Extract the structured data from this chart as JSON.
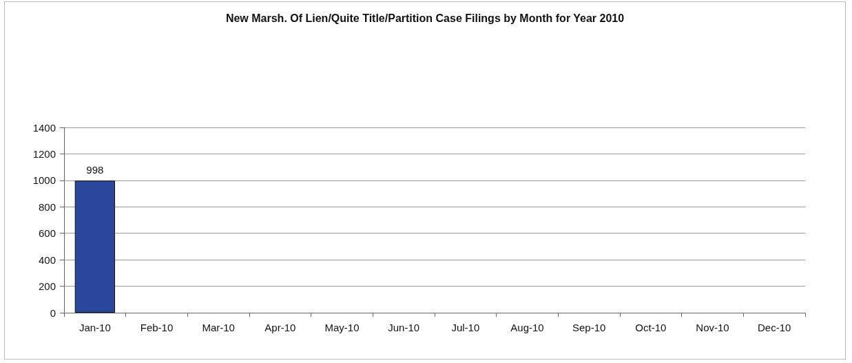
{
  "chart_data": {
    "type": "bar",
    "title": "New Marsh. Of Lien/Quite Title/Partition Case Filings by Month for Year 2010",
    "categories": [
      "Jan-10",
      "Feb-10",
      "Mar-10",
      "Apr-10",
      "May-10",
      "Jun-10",
      "Jul-10",
      "Aug-10",
      "Sep-10",
      "Oct-10",
      "Nov-10",
      "Dec-10"
    ],
    "values": [
      998,
      null,
      null,
      null,
      null,
      null,
      null,
      null,
      null,
      null,
      null,
      null
    ],
    "color": "#2b479b",
    "ylim": [
      0,
      1400
    ],
    "yticks": [
      0,
      200,
      400,
      600,
      800,
      1000,
      1200,
      1400
    ],
    "grid": "y",
    "data_labels": true
  }
}
